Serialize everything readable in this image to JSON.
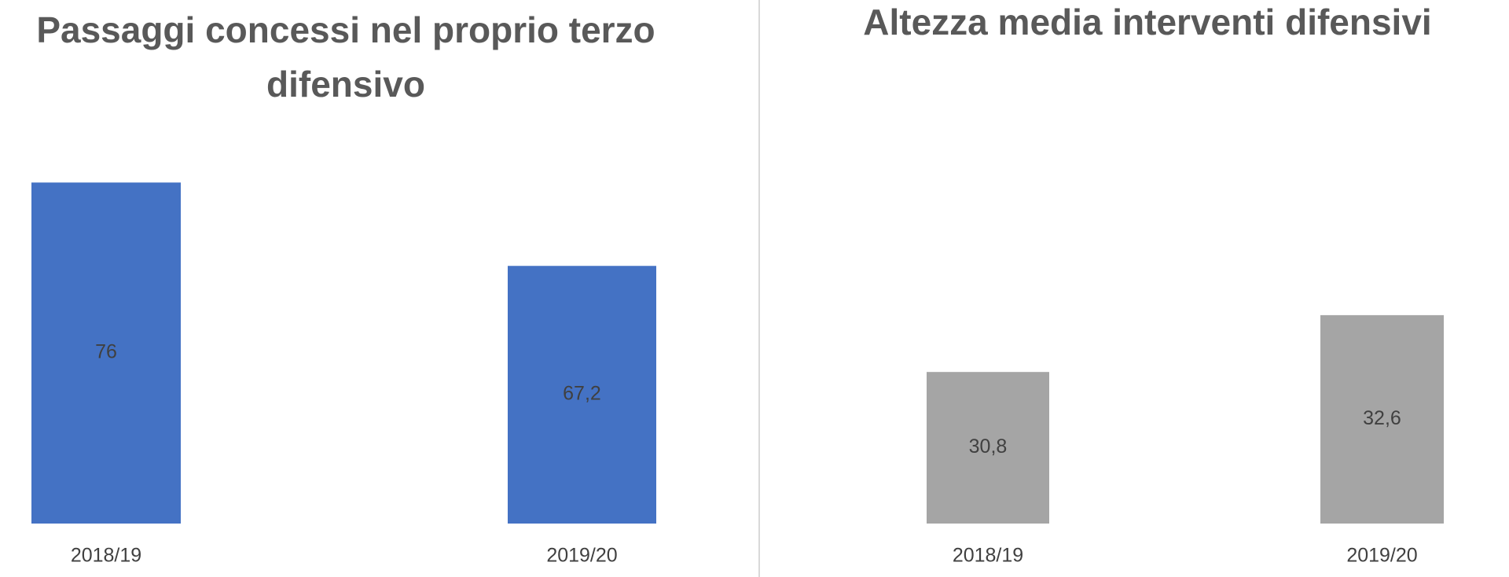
{
  "chart_data": [
    {
      "type": "bar",
      "title": "Passaggi concessi nel proprio terzo difensivo",
      "categories": [
        "2018/19",
        "2019/20"
      ],
      "values": [
        76,
        67.2
      ],
      "value_labels": [
        "76",
        "67,2"
      ],
      "color": "#4472c4",
      "ylim": [
        40,
        80
      ]
    },
    {
      "type": "bar",
      "title": "Altezza media interventi difensivi",
      "categories": [
        "2018/19",
        "2019/20"
      ],
      "values": [
        30.8,
        32.6
      ],
      "value_labels": [
        "30,8",
        "32,6"
      ],
      "color": "#a5a5a5",
      "ylim": [
        26,
        38
      ]
    }
  ]
}
